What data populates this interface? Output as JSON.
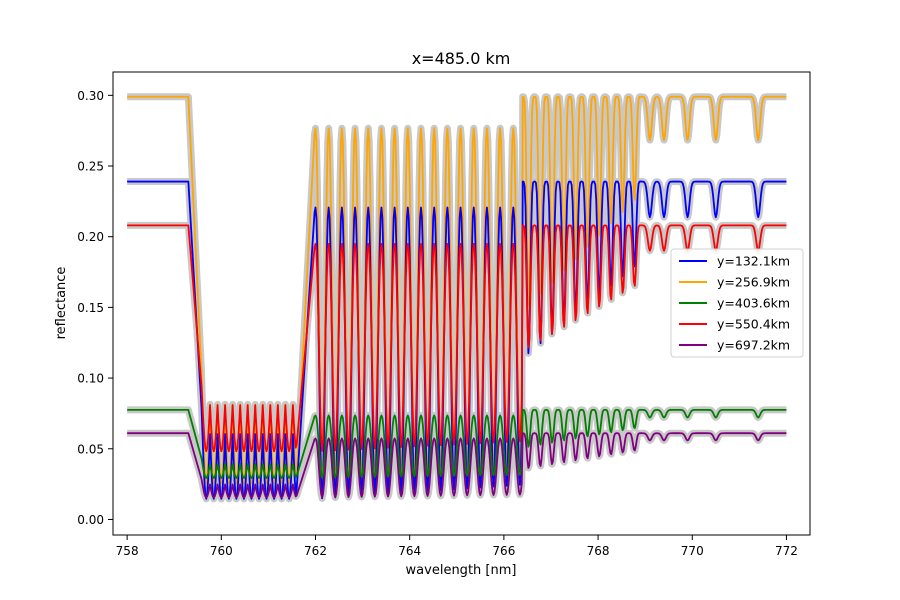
{
  "chart_data": {
    "type": "line",
    "title": "x=485.0 km",
    "xlabel": "wavelength [nm]",
    "ylabel": "reflectance",
    "xlim": [
      757.7,
      772.5
    ],
    "ylim": [
      -0.011,
      0.3165
    ],
    "xticks": [
      758,
      760,
      762,
      764,
      766,
      768,
      770,
      772
    ],
    "yticks": [
      0.0,
      0.05,
      0.1,
      0.15,
      0.2,
      0.25,
      0.3
    ],
    "ytick_labels": [
      "0.00",
      "0.05",
      "0.10",
      "0.15",
      "0.20",
      "0.25",
      "0.30"
    ],
    "grid": false,
    "legend_position": "center-right",
    "uncertainty_band_color": "#c8c8c8",
    "series": [
      {
        "name": "y=132.1km",
        "color": "#0000ff",
        "continuum": 0.239,
        "floor": 0.01,
        "dip_scale": 1.0
      },
      {
        "name": "y=256.9km",
        "color": "#ffa500",
        "continuum": 0.299,
        "floor": 0.02,
        "dip_scale": 1.0
      },
      {
        "name": "y=403.6km",
        "color": "#008000",
        "continuum": 0.0775,
        "floor": 0.012,
        "dip_scale": 0.75
      },
      {
        "name": "y=550.4km",
        "color": "#ff0000",
        "continuum": 0.208,
        "floor": 0.045,
        "dip_scale": 1.0
      },
      {
        "name": "y=697.2km",
        "color": "#800080",
        "continuum": 0.061,
        "floor": 0.003,
        "dip_scale": 0.8
      }
    ]
  }
}
